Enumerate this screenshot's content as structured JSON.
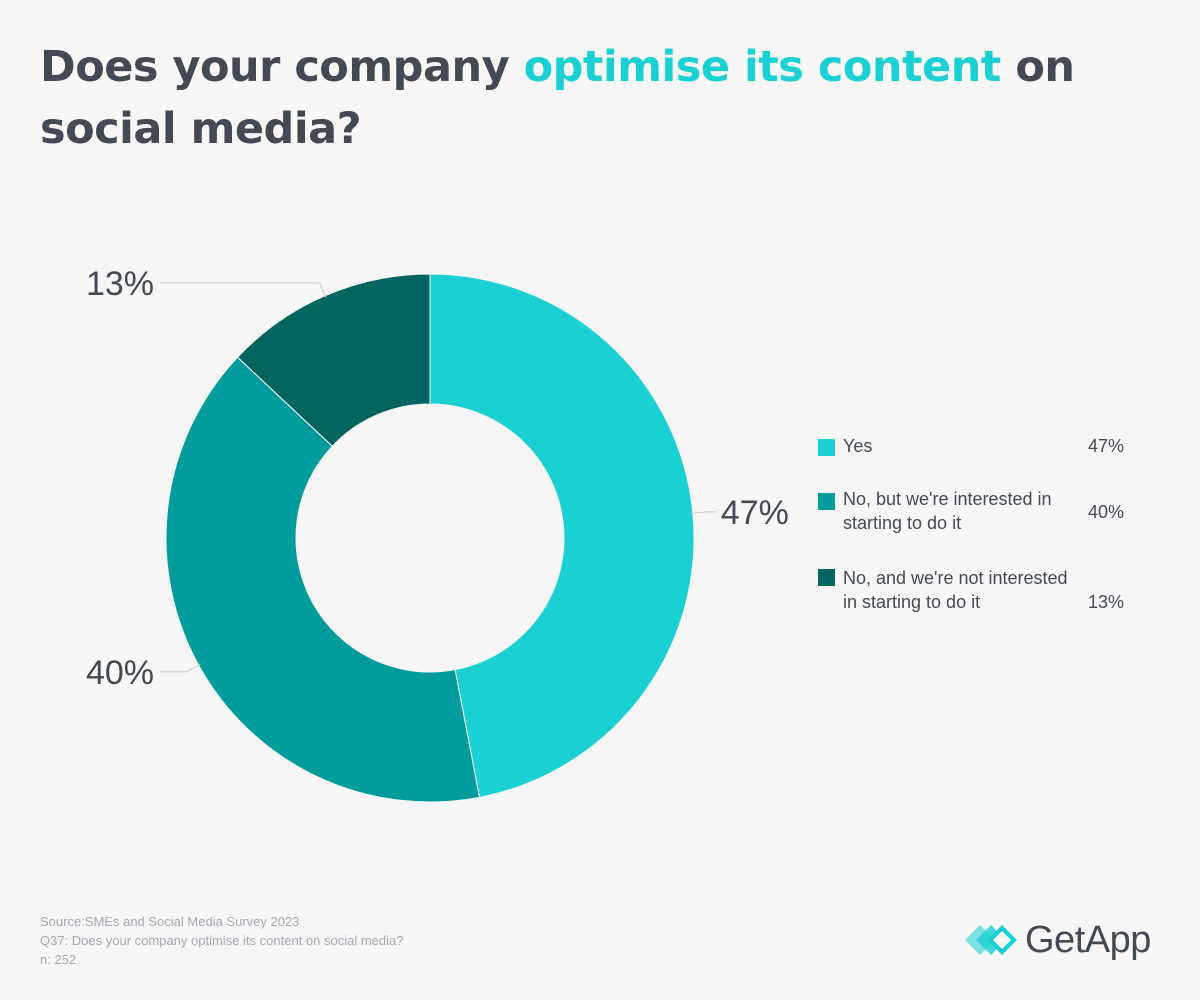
{
  "title": {
    "part1": "Does your company ",
    "highlight": "optimise its content",
    "part2": " on social media?"
  },
  "chart_data": {
    "type": "pie",
    "variant": "donut",
    "title": "Does your company optimise its content on social media?",
    "slices": [
      {
        "label": "Yes",
        "value": 47,
        "display": "47%",
        "color": "#1ad0d2"
      },
      {
        "label": "No, but we're interested in starting to do it",
        "value": 40,
        "display": "40%",
        "color": "#009c9c"
      },
      {
        "label": "No, and we're not interested in starting to do it",
        "value": 13,
        "display": "13%",
        "color": "#00645f"
      }
    ],
    "legend_position": "right"
  },
  "legend": {
    "items": [
      {
        "label": "Yes",
        "value": "47%",
        "color": "#1ad0d2"
      },
      {
        "label": "No, but we're interested in starting to do it",
        "value": "40%",
        "color": "#009c9c"
      },
      {
        "label": "No, and we're not interested in starting to do it",
        "value": "13%",
        "color": "#00645f"
      }
    ]
  },
  "footer": {
    "source": "Source:SMEs and Social Media Survey 2023",
    "question": "Q37: Does your company optimise its content on social media?",
    "n": "n: 252"
  },
  "brand": {
    "name": "GetApp",
    "icon": "getapp-logo-icon",
    "accent": "#1ad0d2"
  }
}
